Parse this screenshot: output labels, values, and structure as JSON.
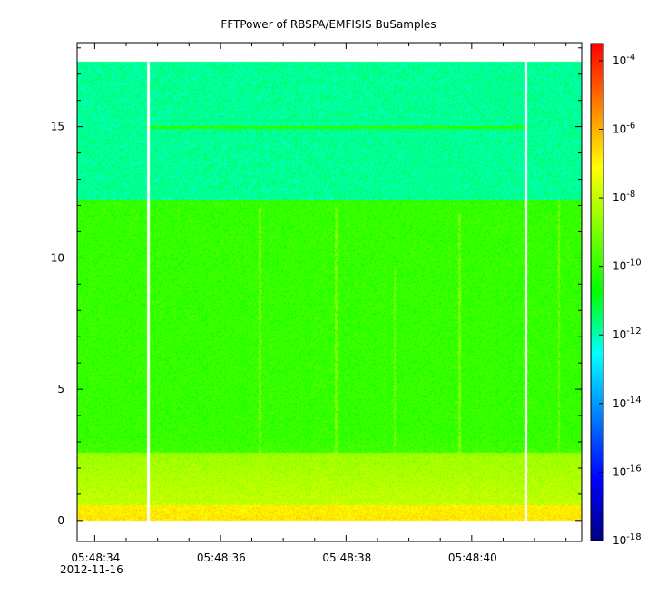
{
  "chart_data": {
    "type": "heatmap",
    "title": "FFTPower of RBSPA/EMFISIS  BuSamples",
    "xlabel": "",
    "ylabel": "",
    "x_range_seconds": [
      "05:48:33.72",
      "05:48:41.75"
    ],
    "x_ticks": [
      {
        "value": "05:48:34",
        "label": "05:48:34"
      },
      {
        "value": "05:48:36",
        "label": "05:48:36"
      },
      {
        "value": "05:48:38",
        "label": "05:48:38"
      },
      {
        "value": "05:48:40",
        "label": "05:48:40"
      }
    ],
    "x_tick_date": "2012-11-16",
    "y_range": [
      -0.8,
      18.2
    ],
    "y_ticks": [
      0,
      5,
      10,
      15
    ],
    "data_y_range": [
      0,
      17.5
    ],
    "gaps": [
      {
        "start": "05:48:34.83",
        "end": "05:48:34.87"
      },
      {
        "start": "05:48:40.83",
        "end": "05:48:40.87"
      }
    ],
    "bands": [
      {
        "y_from": 12.2,
        "y_to": 17.5,
        "log10_power": -11.8,
        "description": "teal-green"
      },
      {
        "y_from": 2.6,
        "y_to": 12.2,
        "log10_power": -10.0,
        "description": "green"
      },
      {
        "y_from": 0.6,
        "y_to": 2.6,
        "log10_power": -8.7,
        "description": "yellow-green"
      },
      {
        "y_from": 0.0,
        "y_to": 0.6,
        "log10_power": -7.7,
        "description": "orange"
      }
    ],
    "line_features": [
      {
        "type": "horizontal",
        "y": 15.0,
        "log10_power": -10.2
      },
      {
        "type": "vertical",
        "time": "05:48:36.62",
        "y_to": 12.0,
        "log10_power": -8.6
      },
      {
        "type": "vertical",
        "time": "05:48:37.84",
        "y_to": 12.0,
        "log10_power": -8.6
      },
      {
        "type": "vertical",
        "time": "05:48:38.77",
        "y_to": 9.6,
        "log10_power": -8.6
      },
      {
        "type": "vertical",
        "time": "05:48:39.80",
        "y_to": 11.7,
        "log10_power": -8.6
      },
      {
        "type": "vertical",
        "time": "05:48:41.38",
        "y_to": 12.2,
        "log10_power": -8.6
      }
    ],
    "colorbar": {
      "scale": "log",
      "range_log10": [
        -18,
        -3.5
      ],
      "tick_labels": [
        {
          "exp": -4,
          "base": "10",
          "sup": "-4"
        },
        {
          "exp": -6,
          "base": "10",
          "sup": "-6"
        },
        {
          "exp": -8,
          "base": "10",
          "sup": "-8"
        },
        {
          "exp": -10,
          "base": "10",
          "sup": "-10"
        },
        {
          "exp": -12,
          "base": "10",
          "sup": "-12"
        },
        {
          "exp": -14,
          "base": "10",
          "sup": "-14"
        },
        {
          "exp": -16,
          "base": "10",
          "sup": "-16"
        },
        {
          "exp": -18,
          "base": "10",
          "sup": "-18"
        }
      ],
      "colormap": [
        "#00007f",
        "#0000ff",
        "#007fff",
        "#00ffff",
        "#00ff00",
        "#7fff00",
        "#ffff00",
        "#ff7f00",
        "#ff0000"
      ]
    }
  }
}
